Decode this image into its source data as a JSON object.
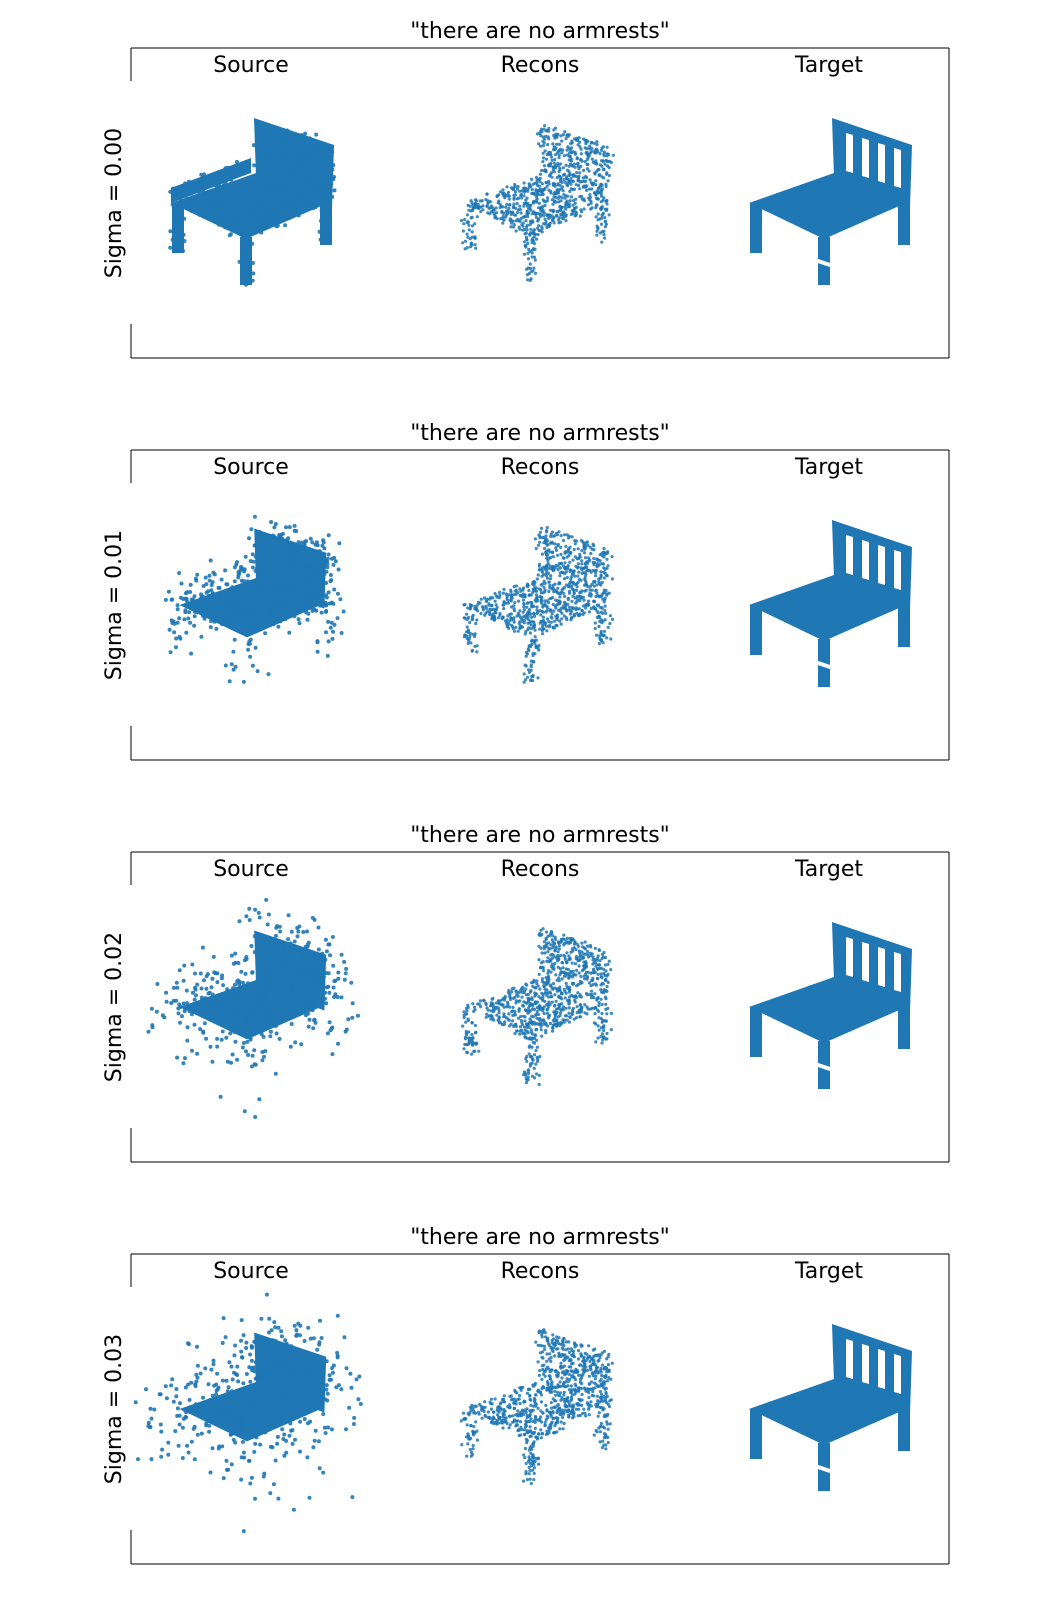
{
  "panels": [
    {
      "title": "\"there are no armrests\"",
      "columns": [
        "Source",
        "Recons",
        "Target"
      ],
      "row_label": "Sigma = 0.00"
    },
    {
      "title": "\"there are no armrests\"",
      "columns": [
        "Source",
        "Recons",
        "Target"
      ],
      "row_label": "Sigma = 0.01"
    },
    {
      "title": "\"there are no armrests\"",
      "columns": [
        "Source",
        "Recons",
        "Target"
      ],
      "row_label": "Sigma = 0.02"
    },
    {
      "title": "\"there are no armrests\"",
      "columns": [
        "Source",
        "Recons",
        "Target"
      ],
      "row_label": "Sigma = 0.03"
    }
  ]
}
